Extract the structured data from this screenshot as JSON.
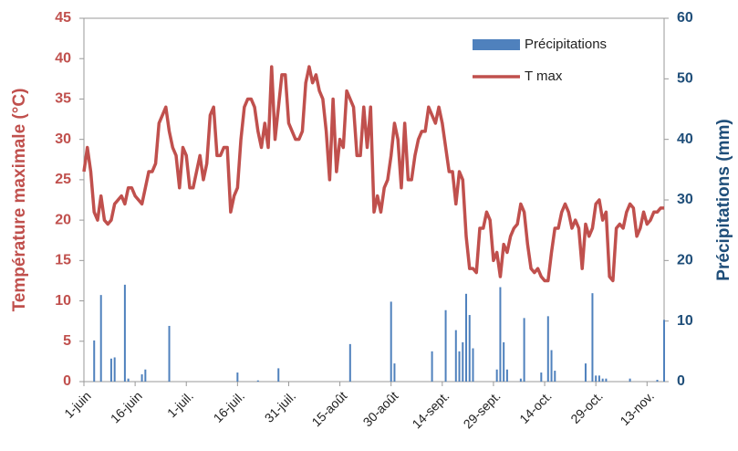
{
  "chart_data": {
    "type": "combo",
    "ylabel": "Température maximale (°C)",
    "y2label": "Précipitations (mm)",
    "ylim": [
      0,
      45
    ],
    "yticks": [
      0,
      5,
      10,
      15,
      20,
      25,
      30,
      35,
      40,
      45
    ],
    "y2lim": [
      0,
      60
    ],
    "y2ticks": [
      0,
      10,
      20,
      30,
      40,
      50,
      60
    ],
    "legend": "top-right",
    "categories": [
      "1-juin",
      null,
      null,
      null,
      null,
      null,
      null,
      null,
      null,
      null,
      null,
      null,
      null,
      null,
      null,
      "16-juin",
      null,
      null,
      null,
      null,
      null,
      null,
      null,
      null,
      null,
      null,
      null,
      null,
      null,
      null,
      "1-juil.",
      null,
      null,
      null,
      null,
      null,
      null,
      null,
      null,
      null,
      null,
      null,
      null,
      null,
      null,
      "16-juil.",
      null,
      null,
      null,
      null,
      null,
      null,
      null,
      null,
      null,
      null,
      null,
      null,
      null,
      null,
      "31-juil.",
      null,
      null,
      null,
      null,
      null,
      null,
      null,
      null,
      null,
      null,
      null,
      null,
      null,
      null,
      "15-août",
      null,
      null,
      null,
      null,
      null,
      null,
      null,
      null,
      null,
      null,
      null,
      null,
      null,
      null,
      "30-août",
      null,
      null,
      null,
      null,
      null,
      null,
      null,
      null,
      null,
      null,
      null,
      null,
      null,
      null,
      "14-sept.",
      null,
      null,
      null,
      null,
      null,
      null,
      null,
      null,
      null,
      null,
      null,
      null,
      null,
      null,
      "29-sept.",
      null,
      null,
      null,
      null,
      null,
      null,
      null,
      null,
      null,
      null,
      null,
      null,
      null,
      null,
      "14-oct.",
      null,
      null,
      null,
      null,
      null,
      null,
      null,
      null,
      null,
      null,
      null,
      null,
      null,
      null,
      "29-oct.",
      null,
      null,
      null,
      null,
      null,
      null,
      null,
      null,
      null,
      null,
      null,
      null,
      null,
      null,
      "13-nov.",
      null,
      null,
      null,
      null,
      null
    ],
    "series": [
      {
        "name": "Précipitations",
        "type": "bar",
        "axis": "y2",
        "color": "#4f81bd",
        "values": [
          0,
          0,
          0,
          6.8,
          0,
          14.3,
          0,
          0,
          3.8,
          4,
          0,
          0,
          16,
          0.5,
          0,
          0,
          0,
          1.2,
          2,
          0,
          0,
          0,
          0,
          0,
          0,
          9.2,
          0,
          0,
          0,
          0,
          0,
          0,
          0,
          0,
          0,
          0,
          0,
          0,
          0,
          0,
          0,
          0,
          0,
          0,
          0,
          1.5,
          0,
          0,
          0,
          0,
          0,
          0.2,
          0,
          0,
          0,
          0,
          0,
          2.2,
          0,
          0,
          0,
          0,
          0,
          0,
          0,
          0,
          0,
          0,
          0,
          0,
          0,
          0,
          0,
          0,
          0,
          0,
          0,
          0,
          6.2,
          0,
          0,
          0,
          0,
          0,
          0,
          0,
          0,
          0,
          0,
          0,
          13.2,
          3,
          0,
          0,
          0,
          0,
          0,
          0,
          0,
          0,
          0,
          0,
          5,
          0,
          0,
          0,
          11.8,
          0,
          0,
          8.5,
          5,
          6.5,
          14.5,
          11,
          5.5,
          0,
          0,
          0,
          0,
          0,
          0,
          2,
          15.6,
          6.5,
          2,
          0,
          0,
          0,
          0.5,
          10.5,
          0,
          0,
          0,
          0,
          1.5,
          0,
          10.8,
          5.2,
          1.8,
          0,
          0,
          0,
          0,
          0,
          0,
          0,
          0,
          3,
          0,
          14.6,
          1,
          1,
          0.5,
          0.5,
          0,
          0,
          0,
          0,
          0,
          0,
          0.5,
          0,
          0,
          0,
          0,
          0,
          0,
          0,
          0.3,
          0,
          10.2
        ]
      },
      {
        "name": "T max",
        "type": "line",
        "color": "#c0504d",
        "values": [
          26,
          29,
          26,
          21,
          20,
          23,
          20,
          19.5,
          20,
          22,
          22.5,
          23,
          22,
          24,
          24,
          23,
          22.5,
          22,
          24,
          26,
          26,
          27,
          32,
          33,
          34,
          31,
          29,
          28,
          24,
          29,
          28,
          24,
          24,
          26,
          28,
          25,
          27,
          33,
          34,
          28,
          28,
          29,
          29,
          21,
          23,
          24,
          30,
          34,
          35,
          35,
          34,
          31,
          29,
          32,
          29,
          39,
          30,
          34,
          38,
          38,
          32,
          31,
          30,
          30,
          31,
          37,
          39,
          37,
          38,
          36,
          35,
          31,
          25,
          35,
          26,
          30,
          29,
          36,
          35,
          34,
          28,
          28,
          34,
          29,
          34,
          21,
          23,
          21,
          24,
          25,
          28,
          32,
          30,
          24,
          32,
          25,
          25,
          28,
          30,
          31,
          31,
          34,
          33,
          32,
          34,
          32,
          29,
          26,
          26,
          22,
          26,
          25,
          18,
          14,
          14,
          13.5,
          19,
          19,
          21,
          20,
          15,
          16,
          13,
          17,
          16,
          18,
          19,
          19.5,
          22,
          21,
          17,
          14,
          13.5,
          14,
          13,
          12.5,
          12.5,
          16,
          19,
          19,
          21,
          22,
          21,
          19,
          20,
          19,
          14,
          19.5,
          18,
          19,
          22,
          22.5,
          20,
          21,
          13,
          12.5,
          19,
          19.5,
          19,
          21,
          22,
          21.5,
          18,
          19,
          21,
          19.5,
          20,
          21,
          21,
          21.5,
          21.5
        ]
      }
    ]
  }
}
